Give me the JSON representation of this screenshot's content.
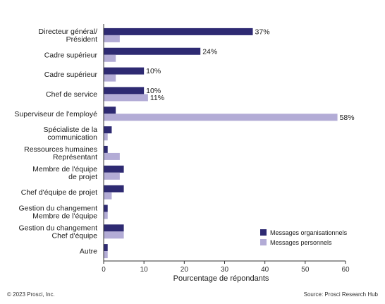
{
  "chart_data": {
    "type": "bar",
    "orientation": "horizontal",
    "title": "",
    "categories": [
      [
        "Directeur général/",
        "Président"
      ],
      [
        "Cadre supérieur"
      ],
      [
        "Cadre supérieur"
      ],
      [
        "Chef de service"
      ],
      [
        "Superviseur de l'employé"
      ],
      [
        "Spécialiste de la",
        "communication"
      ],
      [
        "Ressources humaines",
        "Représentant"
      ],
      [
        "Membre de l'équipe",
        "de projet"
      ],
      [
        "Chef d'équipe de projet"
      ],
      [
        "Gestion du changement",
        "Membre de l'équipe"
      ],
      [
        "Gestion du changement",
        "Chef d'équipe"
      ],
      [
        "Autre"
      ]
    ],
    "series": [
      {
        "name": "Messages organisationnels",
        "color": "#2e2a72",
        "values": [
          37,
          24,
          10,
          10,
          3,
          2,
          1,
          5,
          5,
          1,
          5,
          1
        ],
        "labels": [
          "37%",
          "24%",
          "10%",
          "10%",
          "",
          "",
          "",
          "",
          "",
          "",
          "",
          ""
        ]
      },
      {
        "name": "Messages personnels",
        "color": "#b3acd6",
        "values": [
          4,
          3,
          3,
          11,
          58,
          1,
          4,
          4,
          2,
          1,
          5,
          1
        ],
        "labels": [
          "",
          "",
          "",
          "11%",
          "58%",
          "",
          "",
          "",
          "",
          "",
          "",
          ""
        ]
      }
    ],
    "xlabel": "Pourcentage de répondants",
    "ylabel": "",
    "xlim": [
      0,
      60
    ],
    "xticks": [
      0,
      10,
      20,
      30,
      40,
      50,
      60
    ],
    "grid": false,
    "legend_position": "bottom-right"
  },
  "footer": {
    "copyright": "© 2023 Prosci, Inc.",
    "source": "Source: Prosci Research Hub"
  }
}
